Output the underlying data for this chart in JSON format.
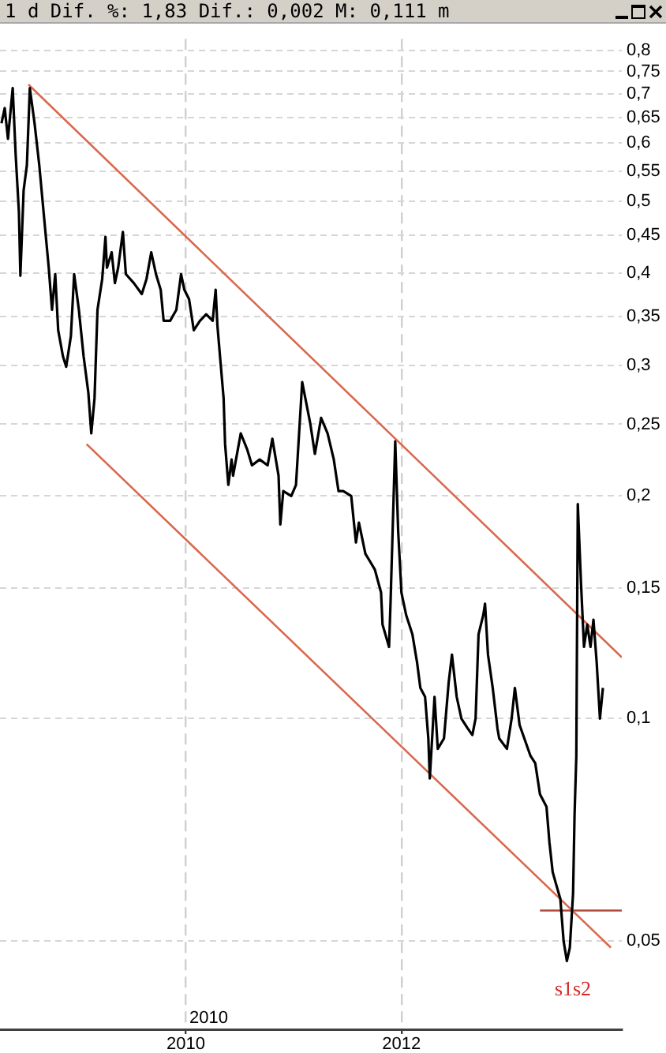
{
  "chart_data": {
    "type": "line",
    "title": "1 d Dif. %: 1,83 Dif.: 0,002 M: 0,111 m",
    "xlim": [
      "2008-04-12",
      "2014-01-16"
    ],
    "xticks": [
      "2010",
      "2012"
    ],
    "ylim": [
      0.038,
      0.83
    ],
    "yticks": [
      {
        "value": 0.05,
        "label": "0,05"
      },
      {
        "value": 0.1,
        "label": "0,1"
      },
      {
        "value": 0.15,
        "label": "0,15"
      },
      {
        "value": 0.2,
        "label": "0,2"
      },
      {
        "value": 0.25,
        "label": "0,25"
      },
      {
        "value": 0.3,
        "label": "0,3"
      },
      {
        "value": 0.35,
        "label": "0,35"
      },
      {
        "value": 0.4,
        "label": "0,4"
      },
      {
        "value": 0.45,
        "label": "0,45"
      },
      {
        "value": 0.5,
        "label": "0,5"
      },
      {
        "value": 0.55,
        "label": "0,55"
      },
      {
        "value": 0.6,
        "label": "0,6"
      },
      {
        "value": 0.65,
        "label": "0,65"
      },
      {
        "value": 0.7,
        "label": "0,7"
      },
      {
        "value": 0.75,
        "label": "0,75"
      },
      {
        "value": 0.8,
        "label": "0,8"
      }
    ],
    "log": true,
    "grid": true,
    "series": [
      {
        "color": "#000000",
        "x": [
          "2008-04-17",
          "2008-04-28",
          "2008-05-09",
          "2008-05-25",
          "2008-06-04",
          "2008-06-15",
          "2008-06-20",
          "2008-07-01",
          "2008-07-12",
          "2008-07-22",
          "2008-08-07",
          "2008-08-23",
          "2008-09-08",
          "2008-09-24",
          "2008-10-05",
          "2008-10-16",
          "2008-10-26",
          "2008-11-11",
          "2008-11-22",
          "2008-12-08",
          "2008-12-19",
          "2009-01-04",
          "2009-01-20",
          "2009-02-05",
          "2009-02-15",
          "2009-02-26",
          "2009-03-08",
          "2009-03-24",
          "2009-04-04",
          "2009-04-09",
          "2009-04-25",
          "2009-05-06",
          "2009-05-17",
          "2009-06-02",
          "2009-06-12",
          "2009-07-09",
          "2009-08-05",
          "2009-08-21",
          "2009-09-06",
          "2009-09-22",
          "2009-10-08",
          "2009-10-18",
          "2009-11-09",
          "2009-11-30",
          "2009-12-16",
          "2009-12-27",
          "2010-01-12",
          "2010-01-28",
          "2010-02-18",
          "2010-03-11",
          "2010-04-02",
          "2010-04-12",
          "2010-04-18",
          "2010-04-28",
          "2010-05-09",
          "2010-05-14",
          "2010-05-25",
          "2010-06-05",
          "2010-06-10",
          "2010-07-06",
          "2010-07-28",
          "2010-08-13",
          "2010-09-08",
          "2010-10-05",
          "2010-10-21",
          "2010-11-11",
          "2010-11-17",
          "2010-11-27",
          "2010-12-24",
          "2011-01-09",
          "2011-01-30",
          "2011-02-26",
          "2011-03-14",
          "2011-04-04",
          "2011-04-26",
          "2011-05-17",
          "2011-06-02",
          "2011-06-18",
          "2011-07-15",
          "2011-07-31",
          "2011-08-10",
          "2011-09-01",
          "2011-09-17",
          "2011-10-03",
          "2011-10-24",
          "2011-10-29",
          "2011-11-20",
          "2011-11-25",
          "2011-12-11",
          "2011-12-21",
          "2012-01-01",
          "2012-01-17",
          "2012-02-07",
          "2012-02-23",
          "2012-03-05",
          "2012-03-21",
          "2012-04-01",
          "2012-04-06",
          "2012-04-22",
          "2012-05-03",
          "2012-05-24",
          "2012-06-09",
          "2012-06-20",
          "2012-07-06",
          "2012-07-22",
          "2012-08-12",
          "2012-08-28",
          "2012-09-08",
          "2012-09-18",
          "2012-10-04",
          "2012-10-10",
          "2012-10-20",
          "2012-11-05",
          "2012-11-21",
          "2012-11-27",
          "2012-12-23",
          "2013-01-08",
          "2013-01-19",
          "2013-02-04",
          "2013-02-20",
          "2013-03-13",
          "2013-03-29",
          "2013-04-14",
          "2013-05-06",
          "2013-05-16",
          "2013-05-27",
          "2013-06-06",
          "2013-06-22",
          "2013-07-03",
          "2013-07-14",
          "2013-07-24",
          "2013-08-04",
          "2013-08-09",
          "2013-08-15",
          "2013-08-20",
          "2013-08-31",
          "2013-09-10",
          "2013-09-21",
          "2013-10-02",
          "2013-10-12",
          "2013-10-23",
          "2013-11-03",
          "2013-11-13"
        ],
        "values": [
          0.638,
          0.669,
          0.608,
          0.712,
          0.579,
          0.484,
          0.397,
          0.518,
          0.56,
          0.712,
          0.638,
          0.56,
          0.477,
          0.407,
          0.357,
          0.399,
          0.335,
          0.309,
          0.299,
          0.329,
          0.399,
          0.357,
          0.309,
          0.276,
          0.243,
          0.271,
          0.357,
          0.393,
          0.448,
          0.407,
          0.427,
          0.388,
          0.407,
          0.455,
          0.399,
          0.388,
          0.375,
          0.393,
          0.427,
          0.399,
          0.38,
          0.345,
          0.345,
          0.357,
          0.399,
          0.38,
          0.369,
          0.335,
          0.345,
          0.352,
          0.345,
          0.38,
          0.34,
          0.305,
          0.271,
          0.235,
          0.207,
          0.224,
          0.213,
          0.243,
          0.231,
          0.22,
          0.224,
          0.22,
          0.239,
          0.213,
          0.183,
          0.203,
          0.2,
          0.207,
          0.285,
          0.251,
          0.228,
          0.255,
          0.243,
          0.224,
          0.203,
          0.203,
          0.2,
          0.173,
          0.184,
          0.167,
          0.163,
          0.159,
          0.148,
          0.134,
          0.125,
          0.143,
          0.237,
          0.179,
          0.148,
          0.138,
          0.13,
          0.119,
          0.11,
          0.107,
          0.094,
          0.083,
          0.107,
          0.091,
          0.094,
          0.112,
          0.122,
          0.107,
          0.1,
          0.097,
          0.095,
          0.1,
          0.13,
          0.138,
          0.143,
          0.122,
          0.11,
          0.097,
          0.094,
          0.091,
          0.1,
          0.11,
          0.098,
          0.094,
          0.089,
          0.087,
          0.079,
          0.076,
          0.068,
          0.062,
          0.06,
          0.057,
          0.05,
          0.047,
          0.049,
          0.058,
          0.074,
          0.089,
          0.195,
          0.152,
          0.125,
          0.134,
          0.125,
          0.136,
          0.119,
          0.1,
          0.11
        ]
      },
      {
        "color": "#d9694f",
        "x": [
          "2008-07-17",
          "2014-01-16"
        ],
        "values": [
          0.72,
          0.121
        ]
      },
      {
        "color": "#d9694f",
        "x": [
          "2009-01-30",
          "2013-12-10"
        ],
        "values": [
          0.235,
          0.049
        ]
      },
      {
        "color": "#b04a3c",
        "x": [
          "2013-04-14",
          "2014-01-16"
        ],
        "values": [
          0.055,
          0.055
        ]
      }
    ],
    "annotations": [
      "s1s2",
      "2010"
    ]
  }
}
